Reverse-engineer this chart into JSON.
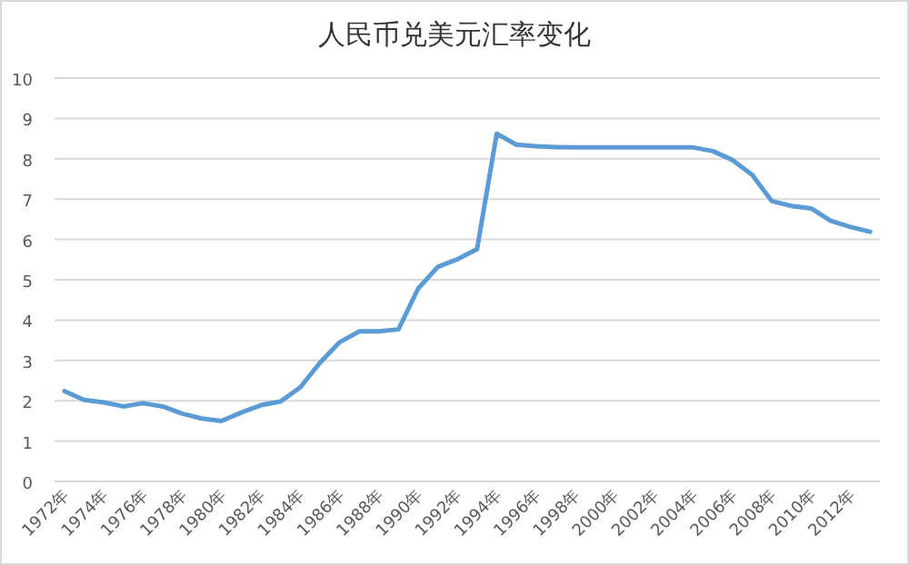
{
  "chart_data": {
    "type": "line",
    "title": "人民币兑美元汇率变化",
    "categories": [
      "1972年",
      null,
      "1974年",
      null,
      "1976年",
      null,
      "1978年",
      null,
      "1980年",
      null,
      "1982年",
      null,
      "1984年",
      null,
      "1986年",
      null,
      "1988年",
      null,
      "1990年",
      null,
      "1992年",
      null,
      "1994年",
      null,
      "1996年",
      null,
      "1998年",
      null,
      "2000年",
      null,
      "2002年",
      null,
      "2004年",
      null,
      "2006年",
      null,
      "2008年",
      null,
      "2010年",
      null,
      "2012年",
      null
    ],
    "values": [
      2.24,
      2.02,
      1.96,
      1.86,
      1.94,
      1.86,
      1.68,
      1.56,
      1.5,
      1.71,
      1.89,
      1.98,
      2.33,
      2.94,
      3.45,
      3.72,
      3.72,
      3.77,
      4.78,
      5.32,
      5.51,
      5.76,
      8.62,
      8.35,
      8.31,
      8.29,
      8.28,
      8.28,
      8.28,
      8.28,
      8.28,
      8.28,
      8.28,
      8.19,
      7.97,
      7.6,
      6.95,
      6.83,
      6.77,
      6.46,
      6.31,
      6.19
    ],
    "color": "#5b9bd5",
    "ylim": [
      0,
      10
    ],
    "yticks": [
      0,
      1,
      2,
      3,
      4,
      5,
      6,
      7,
      8,
      9,
      10
    ],
    "grid": "y"
  }
}
